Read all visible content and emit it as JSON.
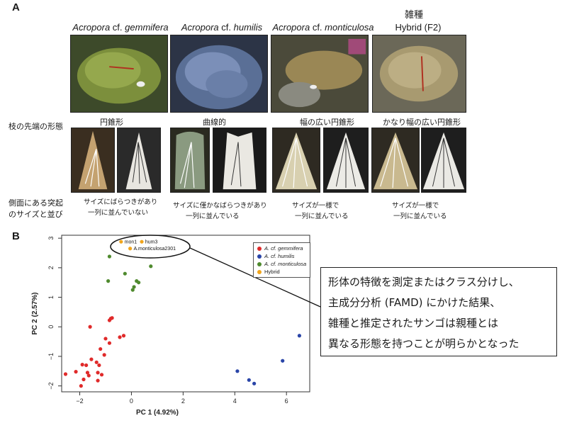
{
  "panel_a": {
    "letter": "A",
    "hybrid_jp": "雑種",
    "species": [
      {
        "genus": "Acropora",
        "cf": "cf.",
        "epithet": "gemmifera"
      },
      {
        "genus": "Acropora",
        "cf": "cf.",
        "epithet": "humilis"
      },
      {
        "genus": "Acropora",
        "cf": "cf.",
        "epithet": "monticulosa"
      }
    ],
    "hybrid_label": "Hybrid (F2)",
    "row_label_tip": "枝の先端の形態",
    "row_label_side_1": "側面にある突起",
    "row_label_side_2": "のサイズと並び",
    "tip_shapes": [
      "円錐形",
      "曲線的",
      "幅の広い円錐形",
      "かなり幅の広い円錐形"
    ],
    "descriptions": [
      [
        "サイズにばらつきがあり",
        "一列に並んでいない"
      ],
      [
        "サイズに僅かなばらつきがあり",
        "一列に並んでいる"
      ],
      [
        "サイズが一様で",
        "一列に並んでいる"
      ],
      [
        "サイズが一様で",
        "一列に並んでいる"
      ]
    ]
  },
  "panel_b": {
    "letter": "B",
    "callout_lines": [
      "形体の特徴を測定またはクラス分けし、",
      "主成分分析 (FAMD) にかけた結果、",
      "雑種と推定されたサンゴは親種とは",
      "異なる形態を持つことが明らかとなった"
    ]
  },
  "colors": {
    "gemmifera": "#e02a2a",
    "humilis": "#2a45a8",
    "monticulosa": "#4f8a2e",
    "hybrid": "#f0a51c"
  },
  "chart_data": {
    "type": "scatter",
    "xlabel": "PC 1 (4.92%)",
    "ylabel": "PC 2 (2.57%)",
    "xlim": [
      -2.7,
      6.9
    ],
    "ylim": [
      -2.2,
      3.1
    ],
    "xticks": [
      "−2",
      "0",
      "2",
      "4",
      "6"
    ],
    "xtick_values": [
      -2,
      0,
      2,
      4,
      6
    ],
    "yticks": [
      "−2",
      "−1",
      "0",
      "1",
      "2",
      "3"
    ],
    "ytick_values": [
      -2,
      -1,
      0,
      1,
      2,
      3
    ],
    "legend_position": "top-right",
    "series": [
      {
        "name": "A. cf. gemmifera",
        "color_key": "gemmifera",
        "points": [
          [
            -2.55,
            -1.6
          ],
          [
            -2.15,
            -1.52
          ],
          [
            -1.95,
            -2.0
          ],
          [
            -1.9,
            -1.28
          ],
          [
            -1.85,
            -1.78
          ],
          [
            -1.75,
            -1.3
          ],
          [
            -1.7,
            -1.55
          ],
          [
            -1.65,
            -1.65
          ],
          [
            -1.55,
            -1.1
          ],
          [
            -1.35,
            -1.2
          ],
          [
            -1.3,
            -1.55
          ],
          [
            -1.25,
            -1.3
          ],
          [
            -1.3,
            -1.82
          ],
          [
            -1.15,
            -1.62
          ],
          [
            -1.05,
            -0.95
          ],
          [
            -1.2,
            -0.75
          ],
          [
            -0.85,
            -0.55
          ],
          [
            -0.45,
            -0.35
          ],
          [
            -0.3,
            -0.3
          ],
          [
            -1.6,
            0.0
          ],
          [
            -0.8,
            0.28
          ],
          [
            -0.85,
            0.22
          ],
          [
            -0.75,
            0.3
          ],
          [
            -1.0,
            -0.4
          ]
        ]
      },
      {
        "name": "A. cf. humilis",
        "color_key": "humilis",
        "points": [
          [
            4.1,
            -1.5
          ],
          [
            4.55,
            -1.8
          ],
          [
            4.75,
            -1.92
          ],
          [
            5.85,
            -1.15
          ],
          [
            6.5,
            -0.3
          ]
        ]
      },
      {
        "name": "A. cf. monticulosa",
        "color_key": "monticulosa",
        "points": [
          [
            -0.85,
            2.38
          ],
          [
            -0.9,
            1.55
          ],
          [
            -0.25,
            1.8
          ],
          [
            0.05,
            1.25
          ],
          [
            0.1,
            1.35
          ],
          [
            0.2,
            1.55
          ],
          [
            0.28,
            1.5
          ],
          [
            0.75,
            2.05
          ]
        ]
      },
      {
        "name": "Hybrid",
        "color_key": "hybrid",
        "points": [
          [
            -0.4,
            2.88
          ],
          [
            0.4,
            2.88
          ],
          [
            -0.05,
            2.65
          ]
        ]
      }
    ],
    "annotations": [
      {
        "text": "mon1",
        "x": -0.35,
        "y": 2.87
      },
      {
        "text": "hum3",
        "x": 0.45,
        "y": 2.87
      },
      {
        "text": "A.monticulosa2301",
        "x": 0.0,
        "y": 2.64
      }
    ]
  }
}
